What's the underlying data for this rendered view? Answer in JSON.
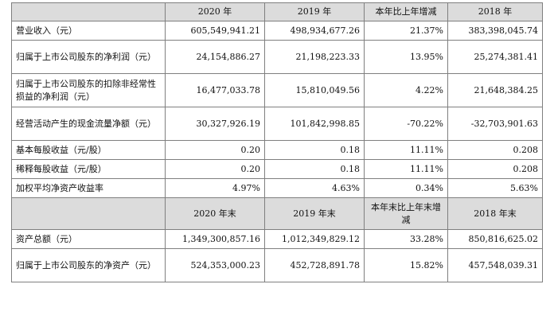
{
  "header1": {
    "label": "",
    "col_a": "2020 年",
    "col_b": "2019 年",
    "col_c": "本年比上年增减",
    "col_d": "2018 年"
  },
  "rows1": [
    {
      "label": "营业收入（元）",
      "a": "605,549,941.21",
      "b": "498,934,677.26",
      "c": "21.37%",
      "d": "383,398,045.74"
    },
    {
      "label": "归属于上市公司股东的净利润（元）",
      "a": "24,154,886.27",
      "b": "21,198,223.33",
      "c": "13.95%",
      "d": "25,274,381.41"
    },
    {
      "label": "归属于上市公司股东的扣除非经常性损益的净利润（元）",
      "a": "16,477,033.78",
      "b": "15,810,049.56",
      "c": "4.22%",
      "d": "21,648,384.25"
    },
    {
      "label": "经营活动产生的现金流量净额（元）",
      "a": "30,327,926.19",
      "b": "101,842,998.85",
      "c": "-70.22%",
      "d": "-32,703,901.63"
    },
    {
      "label": "基本每股收益（元/股）",
      "a": "0.20",
      "b": "0.18",
      "c": "11.11%",
      "d": "0.208"
    },
    {
      "label": "稀释每股收益（元/股）",
      "a": "0.20",
      "b": "0.18",
      "c": "11.11%",
      "d": "0.208"
    },
    {
      "label": "加权平均净资产收益率",
      "a": "4.97%",
      "b": "4.63%",
      "c": "0.34%",
      "d": "5.63%"
    }
  ],
  "header2": {
    "label": "",
    "col_a": "2020 年末",
    "col_b": "2019 年末",
    "col_c": "本年末比上年末增减",
    "col_d": "2018 年末"
  },
  "rows2": [
    {
      "label": "资产总额（元）",
      "a": "1,349,300,857.16",
      "b": "1,012,349,829.12",
      "c": "33.28%",
      "d": "850,816,625.02"
    },
    {
      "label": "归属于上市公司股东的净资产（元）",
      "a": "524,353,000.23",
      "b": "452,728,891.78",
      "c": "15.82%",
      "d": "457,548,039.31"
    }
  ]
}
